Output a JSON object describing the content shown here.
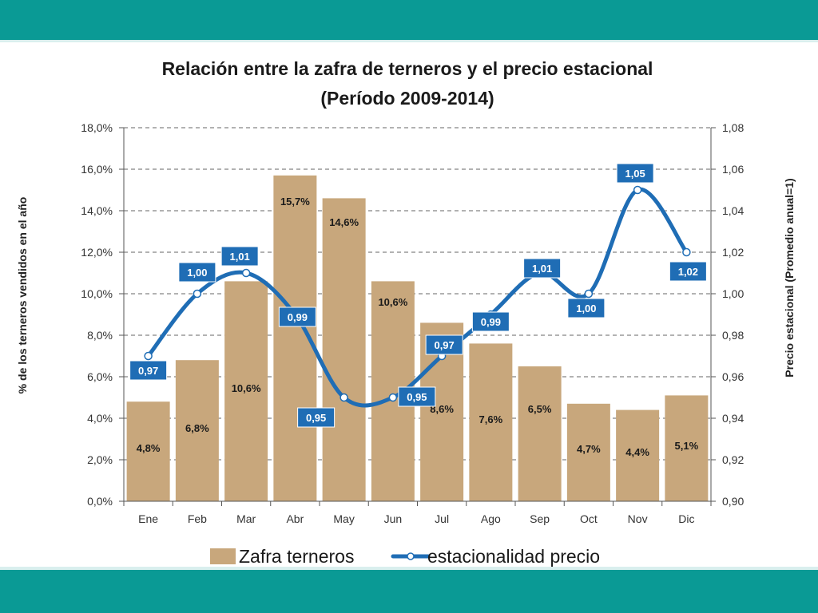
{
  "colors": {
    "band": "#0a9a95",
    "bar": "#c8a77c",
    "line": "#1f6db5",
    "grid": "#666666"
  },
  "chart_data": {
    "type": "bar",
    "title": "Relación entre la zafra de terneros y el precio estacional",
    "subtitle": "(Período 2009-2014)",
    "categories": [
      "Ene",
      "Feb",
      "Mar",
      "Abr",
      "May",
      "Jun",
      "Jul",
      "Ago",
      "Sep",
      "Oct",
      "Nov",
      "Dic"
    ],
    "series": [
      {
        "name": "Zafra terneros",
        "type": "bar",
        "axis": "left",
        "values": [
          4.8,
          6.8,
          10.6,
          15.7,
          14.6,
          10.6,
          8.6,
          7.6,
          6.5,
          4.7,
          4.4,
          5.1
        ],
        "labels": [
          "4,8%",
          "6,8%",
          "10,6%",
          "15,7%",
          "14,6%",
          "10,6%",
          "8,6%",
          "7,6%",
          "6,5%",
          "4,7%",
          "4,4%",
          "5,1%"
        ]
      },
      {
        "name": "estacionalidad precio",
        "type": "line",
        "axis": "right",
        "values": [
          0.97,
          1.0,
          1.01,
          0.99,
          0.95,
          0.95,
          0.97,
          0.99,
          1.01,
          1.0,
          1.05,
          1.02
        ],
        "labels": [
          "0,97",
          "1,00",
          "1,01",
          "0,99",
          "0,95",
          "0,95",
          "0,97",
          "0,99",
          "1,01",
          "1,00",
          "1,05",
          "1,02"
        ]
      }
    ],
    "ylabel": "% de los terneros vendidos en el año",
    "ylabel_right": "Precio estacional (Promedio anual=1)",
    "ylim": [
      0,
      18
    ],
    "ylim_right": [
      0.9,
      1.08
    ],
    "yticks": [
      "0,0%",
      "2,0%",
      "4,0%",
      "6,0%",
      "8,0%",
      "10,0%",
      "12,0%",
      "14,0%",
      "16,0%",
      "18,0%"
    ],
    "yticks_right": [
      "0,90",
      "0,92",
      "0,94",
      "0,96",
      "0,98",
      "1,00",
      "1,02",
      "1,04",
      "1,06",
      "1,08"
    ],
    "grid": true,
    "legend_position": "bottom"
  }
}
